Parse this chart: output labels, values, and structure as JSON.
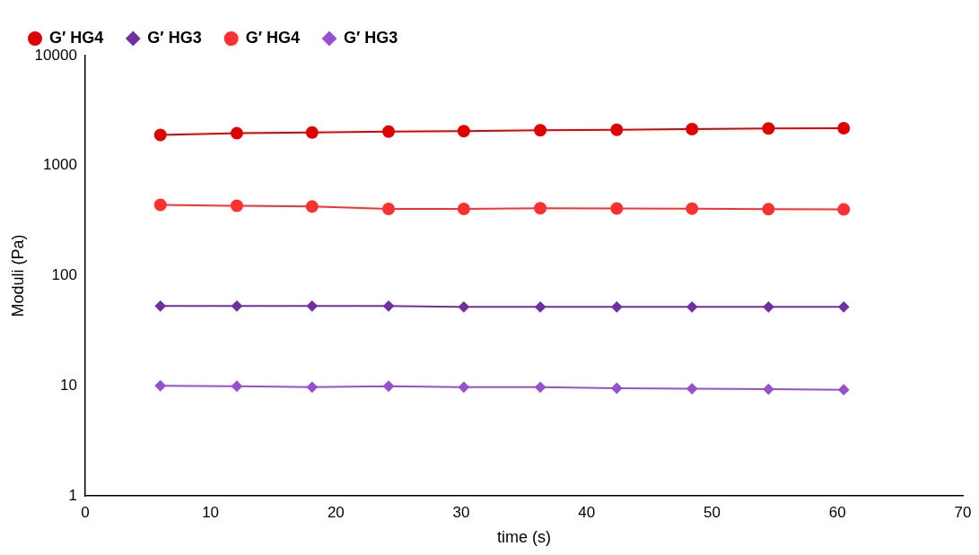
{
  "chart_data": {
    "type": "line",
    "xlabel": "time (s)",
    "ylabel": "Moduli (Pa)",
    "x": [
      6.0,
      12.1,
      18.1,
      24.2,
      30.2,
      36.3,
      42.4,
      48.4,
      54.5,
      60.5
    ],
    "series": [
      {
        "name": "G′ HG4",
        "color": "#e00000",
        "marker": "circle",
        "values": [
          1900,
          1970,
          2000,
          2040,
          2060,
          2100,
          2120,
          2150,
          2180,
          2190
        ]
      },
      {
        "name": "G′ HG3",
        "color": "#7030a0",
        "marker": "diamond",
        "values": [
          53,
          53,
          53,
          53,
          52,
          52,
          52,
          52,
          52,
          52
        ]
      },
      {
        "name": "G′ HG4",
        "color": "#ff3030",
        "marker": "circle",
        "values": [
          440,
          432,
          425,
          405,
          405,
          410,
          408,
          407,
          402,
          400
        ]
      },
      {
        "name": "G′ HG3",
        "color": "#9650d0",
        "marker": "diamond",
        "values": [
          10,
          9.9,
          9.7,
          9.9,
          9.7,
          9.7,
          9.5,
          9.4,
          9.3,
          9.2
        ]
      }
    ],
    "log": "y",
    "xlim": [
      0,
      70
    ],
    "xticks": [
      0,
      10,
      20,
      30,
      40,
      50,
      60,
      70
    ],
    "ylim": [
      1,
      10000
    ],
    "yticks": [
      1,
      10,
      100,
      1000,
      10000
    ],
    "legend": "top left",
    "grid": false
  }
}
